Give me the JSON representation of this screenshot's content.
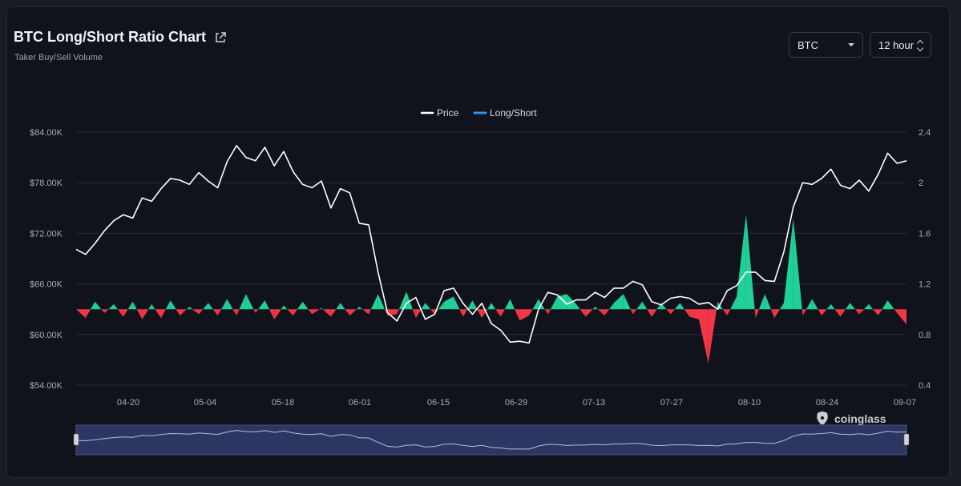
{
  "header": {
    "title": "BTC Long/Short Ratio Chart",
    "subtitle": "Taker Buy/Sell Volume"
  },
  "controls": {
    "coin_select": {
      "value": "BTC"
    },
    "interval_select": {
      "value": "12 hour"
    }
  },
  "branding": {
    "logo_text": "coinglass"
  },
  "colors": {
    "price_line": "#ffffff",
    "long_short_legend": "#2196f3",
    "positive_area": "#1fd196",
    "negative_area": "#f23645",
    "navigator_fill": "#2d3563"
  },
  "chart_data": {
    "type": "line",
    "legend": [
      {
        "name": "Price",
        "color": "#ffffff"
      },
      {
        "name": "Long/Short",
        "color": "#2196f3"
      }
    ],
    "legend_position": "top-center",
    "x_ticks": [
      "04-20",
      "05-04",
      "05-18",
      "06-01",
      "06-15",
      "06-29",
      "07-13",
      "07-27",
      "08-10",
      "08-24",
      "09-07"
    ],
    "x_range": [
      "04-11",
      "09-07"
    ],
    "y_left_ticks": [
      "$54.00K",
      "$60.00K",
      "$66.00K",
      "$72.00K",
      "$78.00K",
      "$84.00K"
    ],
    "y_left_range": [
      54000,
      84000
    ],
    "y_right_ticks": [
      "0.4",
      "0.8",
      "1.2",
      "1.6",
      "2",
      "2.4"
    ],
    "y_right_range": [
      0.4,
      2.4
    ],
    "ratio_baseline": 1.0,
    "grid": true,
    "series": [
      {
        "name": "Price",
        "axis": "left",
        "values": [
          70100,
          69500,
          70800,
          72300,
          73500,
          74200,
          73800,
          76200,
          75800,
          77300,
          78500,
          78300,
          77800,
          79200,
          78200,
          77400,
          80500,
          82400,
          81000,
          80600,
          82200,
          80000,
          81700,
          79300,
          77800,
          77400,
          78200,
          75000,
          77300,
          76800,
          73200,
          73000,
          67400,
          62600,
          61600,
          63700,
          64400,
          61800,
          62400,
          65200,
          65500,
          63700,
          62400,
          63700,
          61300,
          60500,
          59100,
          59200,
          59000,
          63000,
          65000,
          64700,
          63600,
          64100,
          64100,
          65000,
          64400,
          65500,
          65500,
          66300,
          65900,
          63900,
          63500,
          64300,
          64500,
          64300,
          63600,
          63800,
          63000,
          65200,
          65800,
          67400,
          67400,
          66400,
          66300,
          69800,
          75100,
          78000,
          77800,
          78500,
          79600,
          77700,
          77300,
          78300,
          77000,
          79000,
          81500,
          80300,
          80600
        ]
      },
      {
        "name": "Long/Short",
        "axis": "right",
        "values": [
          1.0,
          0.93,
          1.06,
          0.97,
          1.04,
          0.94,
          1.06,
          0.92,
          1.04,
          0.93,
          1.07,
          0.95,
          1.02,
          0.96,
          1.05,
          0.95,
          1.08,
          0.95,
          1.12,
          0.97,
          1.07,
          0.92,
          1.03,
          0.95,
          1.06,
          0.96,
          1.01,
          0.94,
          1.05,
          0.95,
          1.02,
          0.96,
          1.12,
          0.95,
          0.96,
          1.14,
          0.93,
          1.05,
          0.96,
          1.06,
          1.1,
          0.94,
          1.07,
          0.93,
          1.05,
          0.94,
          1.08,
          0.91,
          0.95,
          1.08,
          0.96,
          1.1,
          1.12,
          1.04,
          0.94,
          1.02,
          0.95,
          1.05,
          1.12,
          0.96,
          1.06,
          0.94,
          1.05,
          0.96,
          1.05,
          0.94,
          0.92,
          0.57,
          1.06,
          0.95,
          1.1,
          1.75,
          0.93,
          1.12,
          0.93,
          1.05,
          1.72,
          0.95,
          1.08,
          0.95,
          1.04,
          0.94,
          1.05,
          0.96,
          1.04,
          0.95,
          1.07,
          0.97,
          0.88
        ]
      }
    ]
  }
}
